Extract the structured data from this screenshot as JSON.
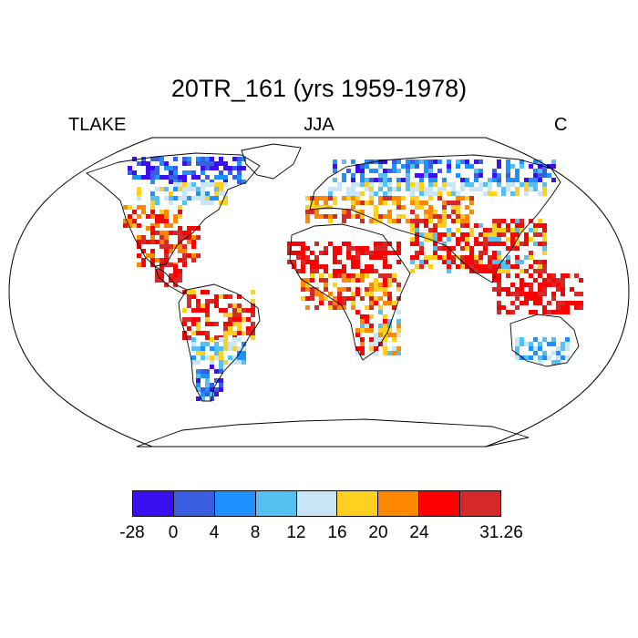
{
  "title": "20TR_161 (yrs 1959-1978)",
  "left_label": "TLAKE",
  "center_label": "JJA",
  "right_label": "C",
  "colorbar": {
    "colors": [
      "#3a10f0",
      "#3b5ee0",
      "#1e90ff",
      "#56c0f2",
      "#c9e6f8",
      "#ffd020",
      "#ff8800",
      "#ff0000",
      "#d42a2a"
    ],
    "tick_labels": [
      "-28",
      "0",
      "4",
      "8",
      "12",
      "16",
      "20",
      "24",
      "31.26"
    ]
  }
}
